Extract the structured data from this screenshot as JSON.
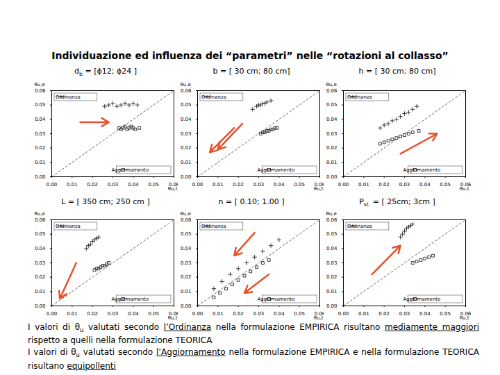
{
  "title": "Individuazione ed influenza dei “parametri” nelle “rotazioni al collasso”",
  "chart_data": [
    {
      "type": "scatter",
      "title": [
        {
          "text": "d"
        },
        {
          "text": "b",
          "sub": true
        },
        {
          "text": " = [ϕ12; ϕ24 ]"
        }
      ],
      "xlabel": "θu,t",
      "ylabel": "θu,e",
      "grid": false,
      "xlim": [
        0,
        0.06
      ],
      "ylim": [
        0,
        0.06
      ],
      "xticks": [
        {
          "value": 0,
          "label": "0.00"
        },
        {
          "value": 0.01,
          "label": "0.01"
        },
        {
          "value": 0.02,
          "label": "0.02"
        },
        {
          "value": 0.03,
          "label": "0.03"
        },
        {
          "value": 0.04,
          "label": "0.04"
        },
        {
          "value": 0.05,
          "label": "0.05"
        },
        {
          "value": 0.06,
          "label": "0.06"
        }
      ],
      "yticks": [
        {
          "value": 0,
          "label": "0.00"
        },
        {
          "value": 0.01,
          "label": "0.01"
        },
        {
          "value": 0.02,
          "label": "0.02"
        },
        {
          "value": 0.03,
          "label": "0.03"
        },
        {
          "value": 0.04,
          "label": "0.04"
        },
        {
          "value": 0.05,
          "label": "0.05"
        },
        {
          "value": 0.06,
          "label": "0.06"
        }
      ],
      "series": [
        {
          "name": "Ordinanza",
          "color": "#222222",
          "marker": "plus",
          "x": [
            0.026,
            0.028,
            0.03,
            0.032,
            0.034,
            0.036,
            0.038,
            0.04,
            0.042
          ],
          "values": [
            0.049,
            0.05,
            0.051,
            0.049,
            0.05,
            0.051,
            0.05,
            0.051,
            0.05
          ]
        },
        {
          "name": "Aggiornamento",
          "color": "#222222",
          "marker": "square",
          "x": [
            0.033,
            0.034,
            0.035,
            0.036,
            0.037,
            0.038,
            0.039,
            0.04,
            0.041,
            0.043
          ],
          "values": [
            0.034,
            0.033,
            0.034,
            0.035,
            0.033,
            0.034,
            0.035,
            0.034,
            0.033,
            0.034
          ]
        }
      ],
      "arrows": [
        {
          "x1": 0.014,
          "y1": 0.038,
          "x2": 0.028,
          "y2": 0.038
        }
      ]
    },
    {
      "type": "scatter",
      "title": [
        {
          "text": "b = [ 30 cm; 80 cm]"
        }
      ],
      "xlabel": "θu,t",
      "ylabel": "θu,e",
      "grid": false,
      "xlim": [
        0,
        0.06
      ],
      "ylim": [
        0,
        0.06
      ],
      "xticks": [
        {
          "value": 0,
          "label": "0.00"
        },
        {
          "value": 0.01,
          "label": "0.01"
        },
        {
          "value": 0.02,
          "label": "0.02"
        },
        {
          "value": 0.03,
          "label": "0.03"
        },
        {
          "value": 0.04,
          "label": "0.04"
        },
        {
          "value": 0.05,
          "label": "0.05"
        },
        {
          "value": 0.06,
          "label": "0.06"
        }
      ],
      "yticks": [
        {
          "value": 0,
          "label": "0.00"
        },
        {
          "value": 0.01,
          "label": "0.01"
        },
        {
          "value": 0.02,
          "label": "0.02"
        },
        {
          "value": 0.03,
          "label": "0.03"
        },
        {
          "value": 0.04,
          "label": "0.04"
        },
        {
          "value": 0.05,
          "label": "0.05"
        },
        {
          "value": 0.06,
          "label": "0.06"
        }
      ],
      "series": [
        {
          "name": "Ordinanza",
          "color": "#222222",
          "marker": "plus",
          "x": [
            0.027,
            0.029,
            0.03,
            0.031,
            0.032,
            0.033,
            0.034,
            0.036
          ],
          "values": [
            0.047,
            0.049,
            0.05,
            0.05,
            0.051,
            0.051,
            0.052,
            0.053
          ]
        },
        {
          "name": "Aggiornamento",
          "color": "#222222",
          "marker": "square",
          "x": [
            0.031,
            0.032,
            0.033,
            0.034,
            0.035,
            0.036,
            0.037,
            0.038,
            0.039
          ],
          "values": [
            0.03,
            0.031,
            0.031,
            0.032,
            0.032,
            0.033,
            0.033,
            0.034,
            0.034
          ]
        }
      ],
      "arrows": [
        {
          "x1": 0.018,
          "y1": 0.034,
          "x2": 0.006,
          "y2": 0.017
        },
        {
          "x1": 0.022,
          "y1": 0.037,
          "x2": 0.01,
          "y2": 0.019
        }
      ]
    },
    {
      "type": "scatter",
      "title": [
        {
          "text": "h = [ 30 cm; 80 cm]"
        }
      ],
      "xlabel": "θu,t",
      "ylabel": "θu,e",
      "grid": false,
      "xlim": [
        0,
        0.06
      ],
      "ylim": [
        0,
        0.06
      ],
      "xticks": [
        {
          "value": 0,
          "label": "0.00"
        },
        {
          "value": 0.01,
          "label": "0.01"
        },
        {
          "value": 0.02,
          "label": "0.02"
        },
        {
          "value": 0.03,
          "label": "0.03"
        },
        {
          "value": 0.04,
          "label": "0.04"
        },
        {
          "value": 0.05,
          "label": "0.05"
        },
        {
          "value": 0.06,
          "label": "0.06"
        }
      ],
      "yticks": [
        {
          "value": 0,
          "label": "0.00"
        },
        {
          "value": 0.01,
          "label": "0.01"
        },
        {
          "value": 0.02,
          "label": "0.02"
        },
        {
          "value": 0.03,
          "label": "0.03"
        },
        {
          "value": 0.04,
          "label": "0.04"
        },
        {
          "value": 0.05,
          "label": "0.05"
        },
        {
          "value": 0.06,
          "label": "0.06"
        }
      ],
      "series": [
        {
          "name": "Ordinanza",
          "color": "#222222",
          "marker": "plus",
          "x": [
            0.018,
            0.02,
            0.022,
            0.024,
            0.026,
            0.028,
            0.03,
            0.032,
            0.034,
            0.036
          ],
          "values": [
            0.034,
            0.036,
            0.037,
            0.039,
            0.04,
            0.042,
            0.044,
            0.045,
            0.047,
            0.049
          ]
        },
        {
          "name": "Aggiornamento",
          "color": "#222222",
          "marker": "square",
          "x": [
            0.018,
            0.02,
            0.022,
            0.024,
            0.026,
            0.028,
            0.03,
            0.032,
            0.034,
            0.037
          ],
          "values": [
            0.023,
            0.024,
            0.025,
            0.026,
            0.027,
            0.028,
            0.029,
            0.03,
            0.031,
            0.032
          ]
        }
      ],
      "arrows": [
        {
          "x1": 0.028,
          "y1": 0.016,
          "x2": 0.046,
          "y2": 0.03
        }
      ]
    },
    {
      "type": "scatter",
      "title": [
        {
          "text": "L = [ 350 cm; 250 cm ]"
        }
      ],
      "xlabel": "θu,t",
      "ylabel": "θu,e",
      "grid": false,
      "xlim": [
        0,
        0.06
      ],
      "ylim": [
        0,
        0.06
      ],
      "xticks": [
        {
          "value": 0,
          "label": "0.00"
        },
        {
          "value": 0.01,
          "label": "0.01"
        },
        {
          "value": 0.02,
          "label": "0.02"
        },
        {
          "value": 0.03,
          "label": "0.03"
        },
        {
          "value": 0.04,
          "label": "0.04"
        },
        {
          "value": 0.05,
          "label": "0.05"
        },
        {
          "value": 0.06,
          "label": "0.06"
        }
      ],
      "yticks": [
        {
          "value": 0,
          "label": "0.00"
        },
        {
          "value": 0.01,
          "label": "0.01"
        },
        {
          "value": 0.02,
          "label": "0.02"
        },
        {
          "value": 0.03,
          "label": "0.03"
        },
        {
          "value": 0.04,
          "label": "0.04"
        },
        {
          "value": 0.05,
          "label": "0.05"
        },
        {
          "value": 0.06,
          "label": "0.06"
        }
      ],
      "series": [
        {
          "name": "Ordinanza",
          "color": "#222222",
          "marker": "plus",
          "x": [
            0.017,
            0.018,
            0.019,
            0.02,
            0.021,
            0.022,
            0.023
          ],
          "values": [
            0.04,
            0.042,
            0.043,
            0.045,
            0.046,
            0.047,
            0.048
          ]
        },
        {
          "name": "Aggiornamento",
          "color": "#222222",
          "marker": "square",
          "x": [
            0.021,
            0.022,
            0.023,
            0.024,
            0.025,
            0.026,
            0.027,
            0.028
          ],
          "values": [
            0.025,
            0.026,
            0.026,
            0.027,
            0.028,
            0.028,
            0.029,
            0.03
          ]
        }
      ],
      "arrows": [
        {
          "x1": 0.012,
          "y1": 0.03,
          "x2": 0.004,
          "y2": 0.005
        }
      ]
    },
    {
      "type": "scatter",
      "title": [
        {
          "text": "n = [ 0.10; 1.00 ]"
        }
      ],
      "xlabel": "θu,t",
      "ylabel": "θu,e",
      "grid": false,
      "xlim": [
        0,
        0.06
      ],
      "ylim": [
        0,
        0.06
      ],
      "xticks": [
        {
          "value": 0,
          "label": "0.00"
        },
        {
          "value": 0.01,
          "label": "0.01"
        },
        {
          "value": 0.02,
          "label": "0.02"
        },
        {
          "value": 0.03,
          "label": "0.03"
        },
        {
          "value": 0.04,
          "label": "0.04"
        },
        {
          "value": 0.05,
          "label": "0.05"
        },
        {
          "value": 0.06,
          "label": "0.06"
        }
      ],
      "yticks": [
        {
          "value": 0,
          "label": "0.00"
        },
        {
          "value": 0.01,
          "label": "0.01"
        },
        {
          "value": 0.02,
          "label": "0.02"
        },
        {
          "value": 0.03,
          "label": "0.03"
        },
        {
          "value": 0.04,
          "label": "0.04"
        },
        {
          "value": 0.05,
          "label": "0.05"
        },
        {
          "value": 0.06,
          "label": "0.06"
        }
      ],
      "series": [
        {
          "name": "Ordinanza",
          "color": "#222222",
          "marker": "plus",
          "x": [
            0.008,
            0.012,
            0.016,
            0.02,
            0.024,
            0.028,
            0.032,
            0.036,
            0.04
          ],
          "values": [
            0.012,
            0.017,
            0.022,
            0.026,
            0.03,
            0.034,
            0.038,
            0.042,
            0.046
          ]
        },
        {
          "name": "Aggiornamento",
          "color": "#222222",
          "marker": "square",
          "x": [
            0.008,
            0.011,
            0.014,
            0.017,
            0.02,
            0.023,
            0.026,
            0.029,
            0.032,
            0.035
          ],
          "values": [
            0.006,
            0.009,
            0.012,
            0.015,
            0.018,
            0.021,
            0.024,
            0.027,
            0.03,
            0.032
          ]
        }
      ],
      "arrows": [
        {
          "x1": 0.028,
          "y1": 0.051,
          "x2": 0.018,
          "y2": 0.035
        },
        {
          "x1": 0.035,
          "y1": 0.022,
          "x2": 0.023,
          "y2": 0.009
        }
      ]
    },
    {
      "type": "scatter",
      "title": [
        {
          "text": "P"
        },
        {
          "text": "st.",
          "sub": true
        },
        {
          "text": " = [ 25cm; 3cm ]"
        }
      ],
      "xlabel": "θu,t",
      "ylabel": "θu,e",
      "grid": false,
      "xlim": [
        0,
        0.06
      ],
      "ylim": [
        0,
        0.06
      ],
      "xticks": [
        {
          "value": 0,
          "label": "0.00"
        },
        {
          "value": 0.01,
          "label": "0.01"
        },
        {
          "value": 0.02,
          "label": "0.02"
        },
        {
          "value": 0.03,
          "label": "0.03"
        },
        {
          "value": 0.04,
          "label": "0.04"
        },
        {
          "value": 0.05,
          "label": "0.05"
        },
        {
          "value": 0.06,
          "label": "0.06"
        }
      ],
      "yticks": [
        {
          "value": 0,
          "label": "0.00"
        },
        {
          "value": 0.01,
          "label": "0.01"
        },
        {
          "value": 0.02,
          "label": "0.02"
        },
        {
          "value": 0.03,
          "label": "0.03"
        },
        {
          "value": 0.04,
          "label": "0.04"
        },
        {
          "value": 0.05,
          "label": "0.05"
        },
        {
          "value": 0.06,
          "label": "0.06"
        }
      ],
      "series": [
        {
          "name": "Ordinanza",
          "color": "#222222",
          "marker": "plus",
          "x": [
            0.028,
            0.029,
            0.03,
            0.031,
            0.032,
            0.033,
            0.034
          ],
          "values": [
            0.048,
            0.05,
            0.052,
            0.054,
            0.055,
            0.056,
            0.057
          ]
        },
        {
          "name": "Aggiornamento",
          "color": "#222222",
          "marker": "square",
          "x": [
            0.034,
            0.036,
            0.038,
            0.04,
            0.042,
            0.044
          ],
          "values": [
            0.03,
            0.031,
            0.032,
            0.033,
            0.034,
            0.035
          ]
        }
      ],
      "arrows": [
        {
          "x1": 0.014,
          "y1": 0.022,
          "x2": 0.028,
          "y2": 0.042
        }
      ]
    }
  ],
  "notes": [
    [
      {
        "text": "I valori di θ"
      },
      {
        "text": "u",
        "sub": true
      },
      {
        "text": " valutati secondo "
      },
      {
        "text": "l’Ordinanza",
        "underline": true
      },
      {
        "text": " nella formulazione EMPIRICA risultano "
      },
      {
        "text": "mediamente maggiori",
        "underline": true
      },
      {
        "text": " rispetto a quelli nella formulazione TEORICA"
      }
    ],
    [
      {
        "text": "I valori di θ"
      },
      {
        "text": "u",
        "sub": true
      },
      {
        "text": " valutati secondo "
      },
      {
        "text": "l’Aggiornamento",
        "underline": true
      },
      {
        "text": " nella formulazione EMPIRICA e nella formulazione TEORICA risultano "
      },
      {
        "text": "equipollenti",
        "underline": true
      }
    ]
  ]
}
